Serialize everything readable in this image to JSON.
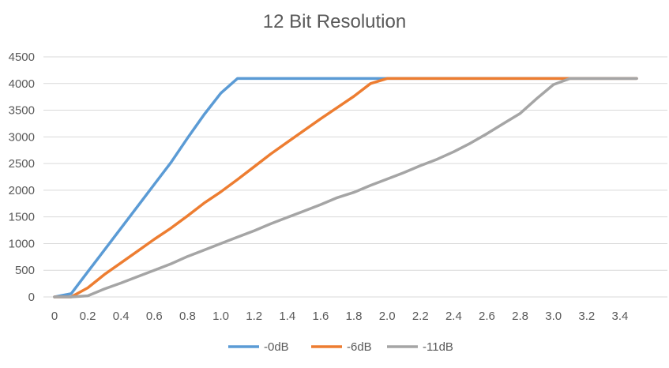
{
  "chart_data": {
    "type": "line",
    "title": "12 Bit Resolution",
    "xlabel": "",
    "ylabel": "",
    "xlim": [
      0,
      3.5
    ],
    "ylim": [
      0,
      4500
    ],
    "x_ticks": [
      "0",
      "0.2",
      "0.4",
      "0.6",
      "0.8",
      "1.0",
      "1.2",
      "1.4",
      "1.6",
      "1.8",
      "2.0",
      "2.2",
      "2.4",
      "2.6",
      "2.8",
      "3.0",
      "3.2",
      "3.4"
    ],
    "y_ticks": [
      "0",
      "500",
      "1000",
      "1500",
      "2000",
      "2500",
      "3000",
      "3500",
      "4000",
      "4500"
    ],
    "grid": "horizontal",
    "legend_position": "bottom",
    "series": [
      {
        "name": "-0dB",
        "color": "#5B9BD5",
        "points": [
          [
            0,
            0
          ],
          [
            0.1,
            60
          ],
          [
            0.2,
            470
          ],
          [
            0.3,
            880
          ],
          [
            0.4,
            1290
          ],
          [
            0.5,
            1700
          ],
          [
            0.6,
            2110
          ],
          [
            0.7,
            2520
          ],
          [
            0.8,
            2980
          ],
          [
            0.9,
            3420
          ],
          [
            1.0,
            3820
          ],
          [
            1.1,
            4095
          ],
          [
            3.5,
            4095
          ]
        ]
      },
      {
        "name": "-6dB",
        "color": "#ED7D31",
        "points": [
          [
            0,
            0
          ],
          [
            0.1,
            0
          ],
          [
            0.2,
            170
          ],
          [
            0.3,
            420
          ],
          [
            0.4,
            640
          ],
          [
            0.5,
            860
          ],
          [
            0.6,
            1080
          ],
          [
            0.7,
            1290
          ],
          [
            0.8,
            1520
          ],
          [
            0.9,
            1760
          ],
          [
            1.0,
            1970
          ],
          [
            1.1,
            2200
          ],
          [
            1.2,
            2440
          ],
          [
            1.3,
            2680
          ],
          [
            1.4,
            2900
          ],
          [
            1.5,
            3120
          ],
          [
            1.6,
            3340
          ],
          [
            1.7,
            3550
          ],
          [
            1.8,
            3760
          ],
          [
            1.9,
            4000
          ],
          [
            2.0,
            4095
          ],
          [
            3.5,
            4095
          ]
        ]
      },
      {
        "name": "-11dB",
        "color": "#A5A5A5",
        "points": [
          [
            0,
            0
          ],
          [
            0.1,
            0
          ],
          [
            0.2,
            20
          ],
          [
            0.3,
            150
          ],
          [
            0.4,
            260
          ],
          [
            0.5,
            380
          ],
          [
            0.6,
            500
          ],
          [
            0.7,
            620
          ],
          [
            0.8,
            760
          ],
          [
            0.9,
            880
          ],
          [
            1.0,
            1000
          ],
          [
            1.1,
            1120
          ],
          [
            1.2,
            1240
          ],
          [
            1.3,
            1370
          ],
          [
            1.4,
            1490
          ],
          [
            1.5,
            1610
          ],
          [
            1.6,
            1730
          ],
          [
            1.7,
            1860
          ],
          [
            1.8,
            1960
          ],
          [
            1.9,
            2090
          ],
          [
            2.0,
            2210
          ],
          [
            2.1,
            2330
          ],
          [
            2.2,
            2460
          ],
          [
            2.3,
            2580
          ],
          [
            2.4,
            2720
          ],
          [
            2.5,
            2880
          ],
          [
            2.6,
            3060
          ],
          [
            2.7,
            3250
          ],
          [
            2.8,
            3440
          ],
          [
            2.9,
            3720
          ],
          [
            3.0,
            3980
          ],
          [
            3.1,
            4095
          ],
          [
            3.5,
            4095
          ]
        ]
      }
    ]
  }
}
